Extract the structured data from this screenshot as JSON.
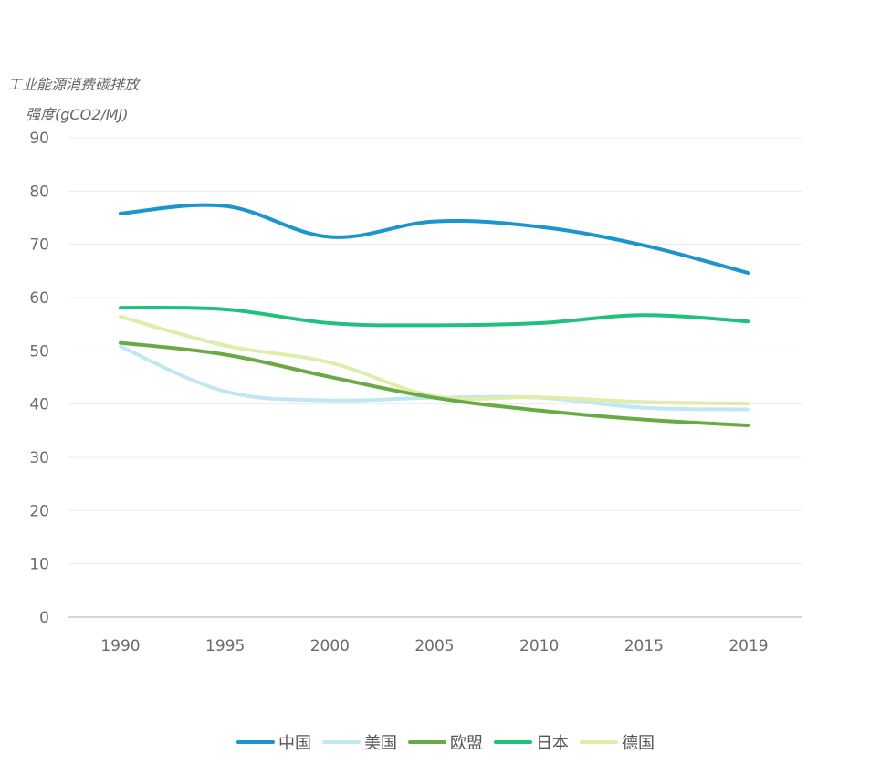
{
  "chart_data": {
    "type": "line",
    "ylabel": "工业能源消费碳排放 强度(gCO2/MJ)",
    "ylabel_lines": [
      "工业能源消费碳排放",
      "强度(gCO2/MJ)"
    ],
    "categories": [
      "1990",
      "1995",
      "2000",
      "2005",
      "2010",
      "2015",
      "2019"
    ],
    "yticks": [
      "0",
      "10",
      "20",
      "30",
      "40",
      "50",
      "60",
      "70",
      "80",
      "90"
    ],
    "ylim": [
      0,
      90
    ],
    "grid": true,
    "legend_position": "bottom",
    "series": [
      {
        "name": "中国",
        "color": "#1a96cc",
        "values": [
          75.8,
          77.2,
          71.4,
          74.3,
          73.3,
          69.8,
          64.6
        ]
      },
      {
        "name": "美国",
        "color": "#bfe8f2",
        "values": [
          50.8,
          42.4,
          40.7,
          41.2,
          41.2,
          39.3,
          39.0
        ]
      },
      {
        "name": "欧盟",
        "color": "#6aaa45",
        "values": [
          51.5,
          49.3,
          45.1,
          41.2,
          38.8,
          37.1,
          36.0
        ]
      },
      {
        "name": "日本",
        "color": "#20c07e",
        "values": [
          58.1,
          57.8,
          55.2,
          54.8,
          55.2,
          56.7,
          55.5
        ]
      },
      {
        "name": "德国",
        "color": "#dfedaa",
        "values": [
          56.4,
          51.0,
          47.8,
          41.5,
          41.3,
          40.4,
          40.1
        ]
      }
    ]
  }
}
